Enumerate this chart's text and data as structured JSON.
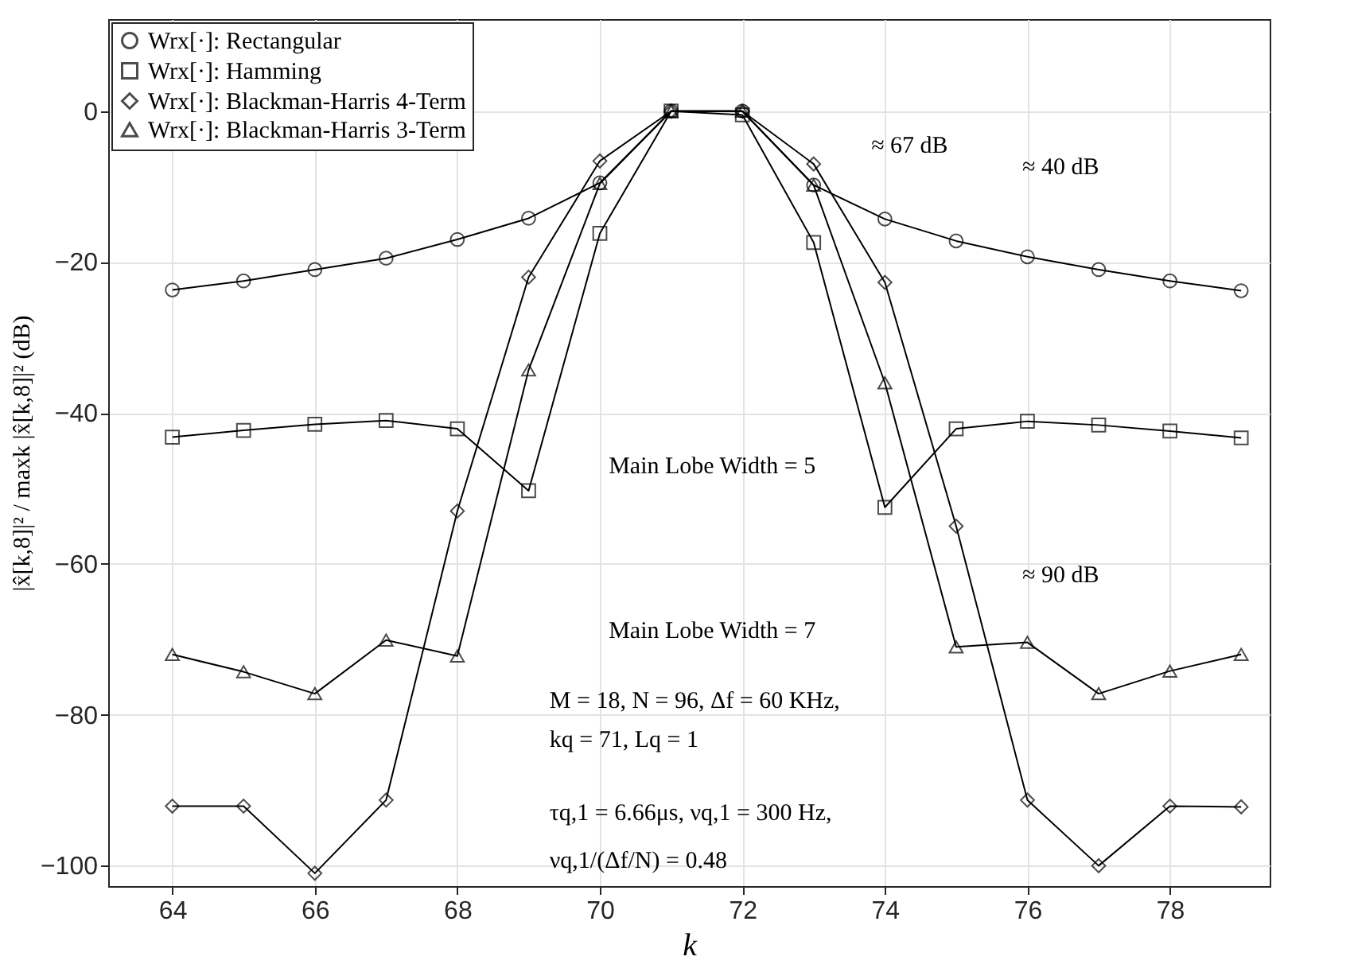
{
  "chart_data": {
    "type": "line",
    "xlabel": "k",
    "ylabel": "|x̂[k,8]|² / maxk |x̂[k,8]|² (dB)",
    "x": [
      64,
      65,
      66,
      67,
      68,
      69,
      70,
      71,
      72,
      73,
      74,
      75,
      76,
      77,
      78,
      79
    ],
    "series": [
      {
        "name": "Wrx[·]: Rectangular",
        "color": "#000000",
        "marker": "circle",
        "values": [
          -23.7,
          -22.5,
          -21,
          -19.5,
          -17,
          -14.2,
          -9.5,
          0,
          0,
          -9.8,
          -14.3,
          -17.2,
          -19.3,
          -21,
          -22.5,
          -23.8
        ]
      },
      {
        "name": "Wrx[·]: Hamming",
        "color": "#000000",
        "marker": "square",
        "values": [
          -43.2,
          -42.3,
          -41.5,
          -41,
          -42.1,
          -50.3,
          -16.2,
          0,
          -0.5,
          -17.4,
          -52.5,
          -42.1,
          -41.1,
          -41.6,
          -42.4,
          -43.3
        ]
      },
      {
        "name": "Wrx[·]: Blackman-Harris 4-Term",
        "color": "#000000",
        "marker": "diamond",
        "values": [
          -92.1,
          -92.1,
          -101,
          -91.3,
          -53,
          -22,
          -6.6,
          0,
          0,
          -7,
          -22.7,
          -55,
          -91.3,
          -100,
          -92.1,
          -92.2
        ]
      },
      {
        "name": "Wrx[·]: Blackman-Harris 3-Term",
        "color": "#000000",
        "marker": "triangle",
        "values": [
          -72,
          -74.3,
          -77.2,
          -70.1,
          -72.2,
          -34.3,
          -9.6,
          0,
          0,
          -9.8,
          -36,
          -71,
          -70.4,
          -77.2,
          -74.2,
          -72
        ]
      }
    ],
    "xlim": [
      63.1,
      79.4
    ],
    "xticks": [
      64,
      66,
      68,
      70,
      72,
      74,
      76,
      78
    ],
    "ylim": [
      -102.7,
      12.2
    ],
    "yticks": [
      -100,
      -80,
      -60,
      -40,
      -20,
      0
    ],
    "grid": true,
    "legend": "top left",
    "line_style": "solid",
    "annotations": [
      "≈ 67 dB",
      "≈ 40 dB",
      "≈ 90 dB",
      "Main Lobe Width = 5",
      "Main Lobe Width = 7",
      "M = 18, N = 96, Δf = 60 KHz,",
      "kq = 71, Lq = 1",
      "τq,1 = 6.66μs, νq,1 = 300 Hz,",
      "νq,1/(Δf/N) = 0.48"
    ]
  }
}
